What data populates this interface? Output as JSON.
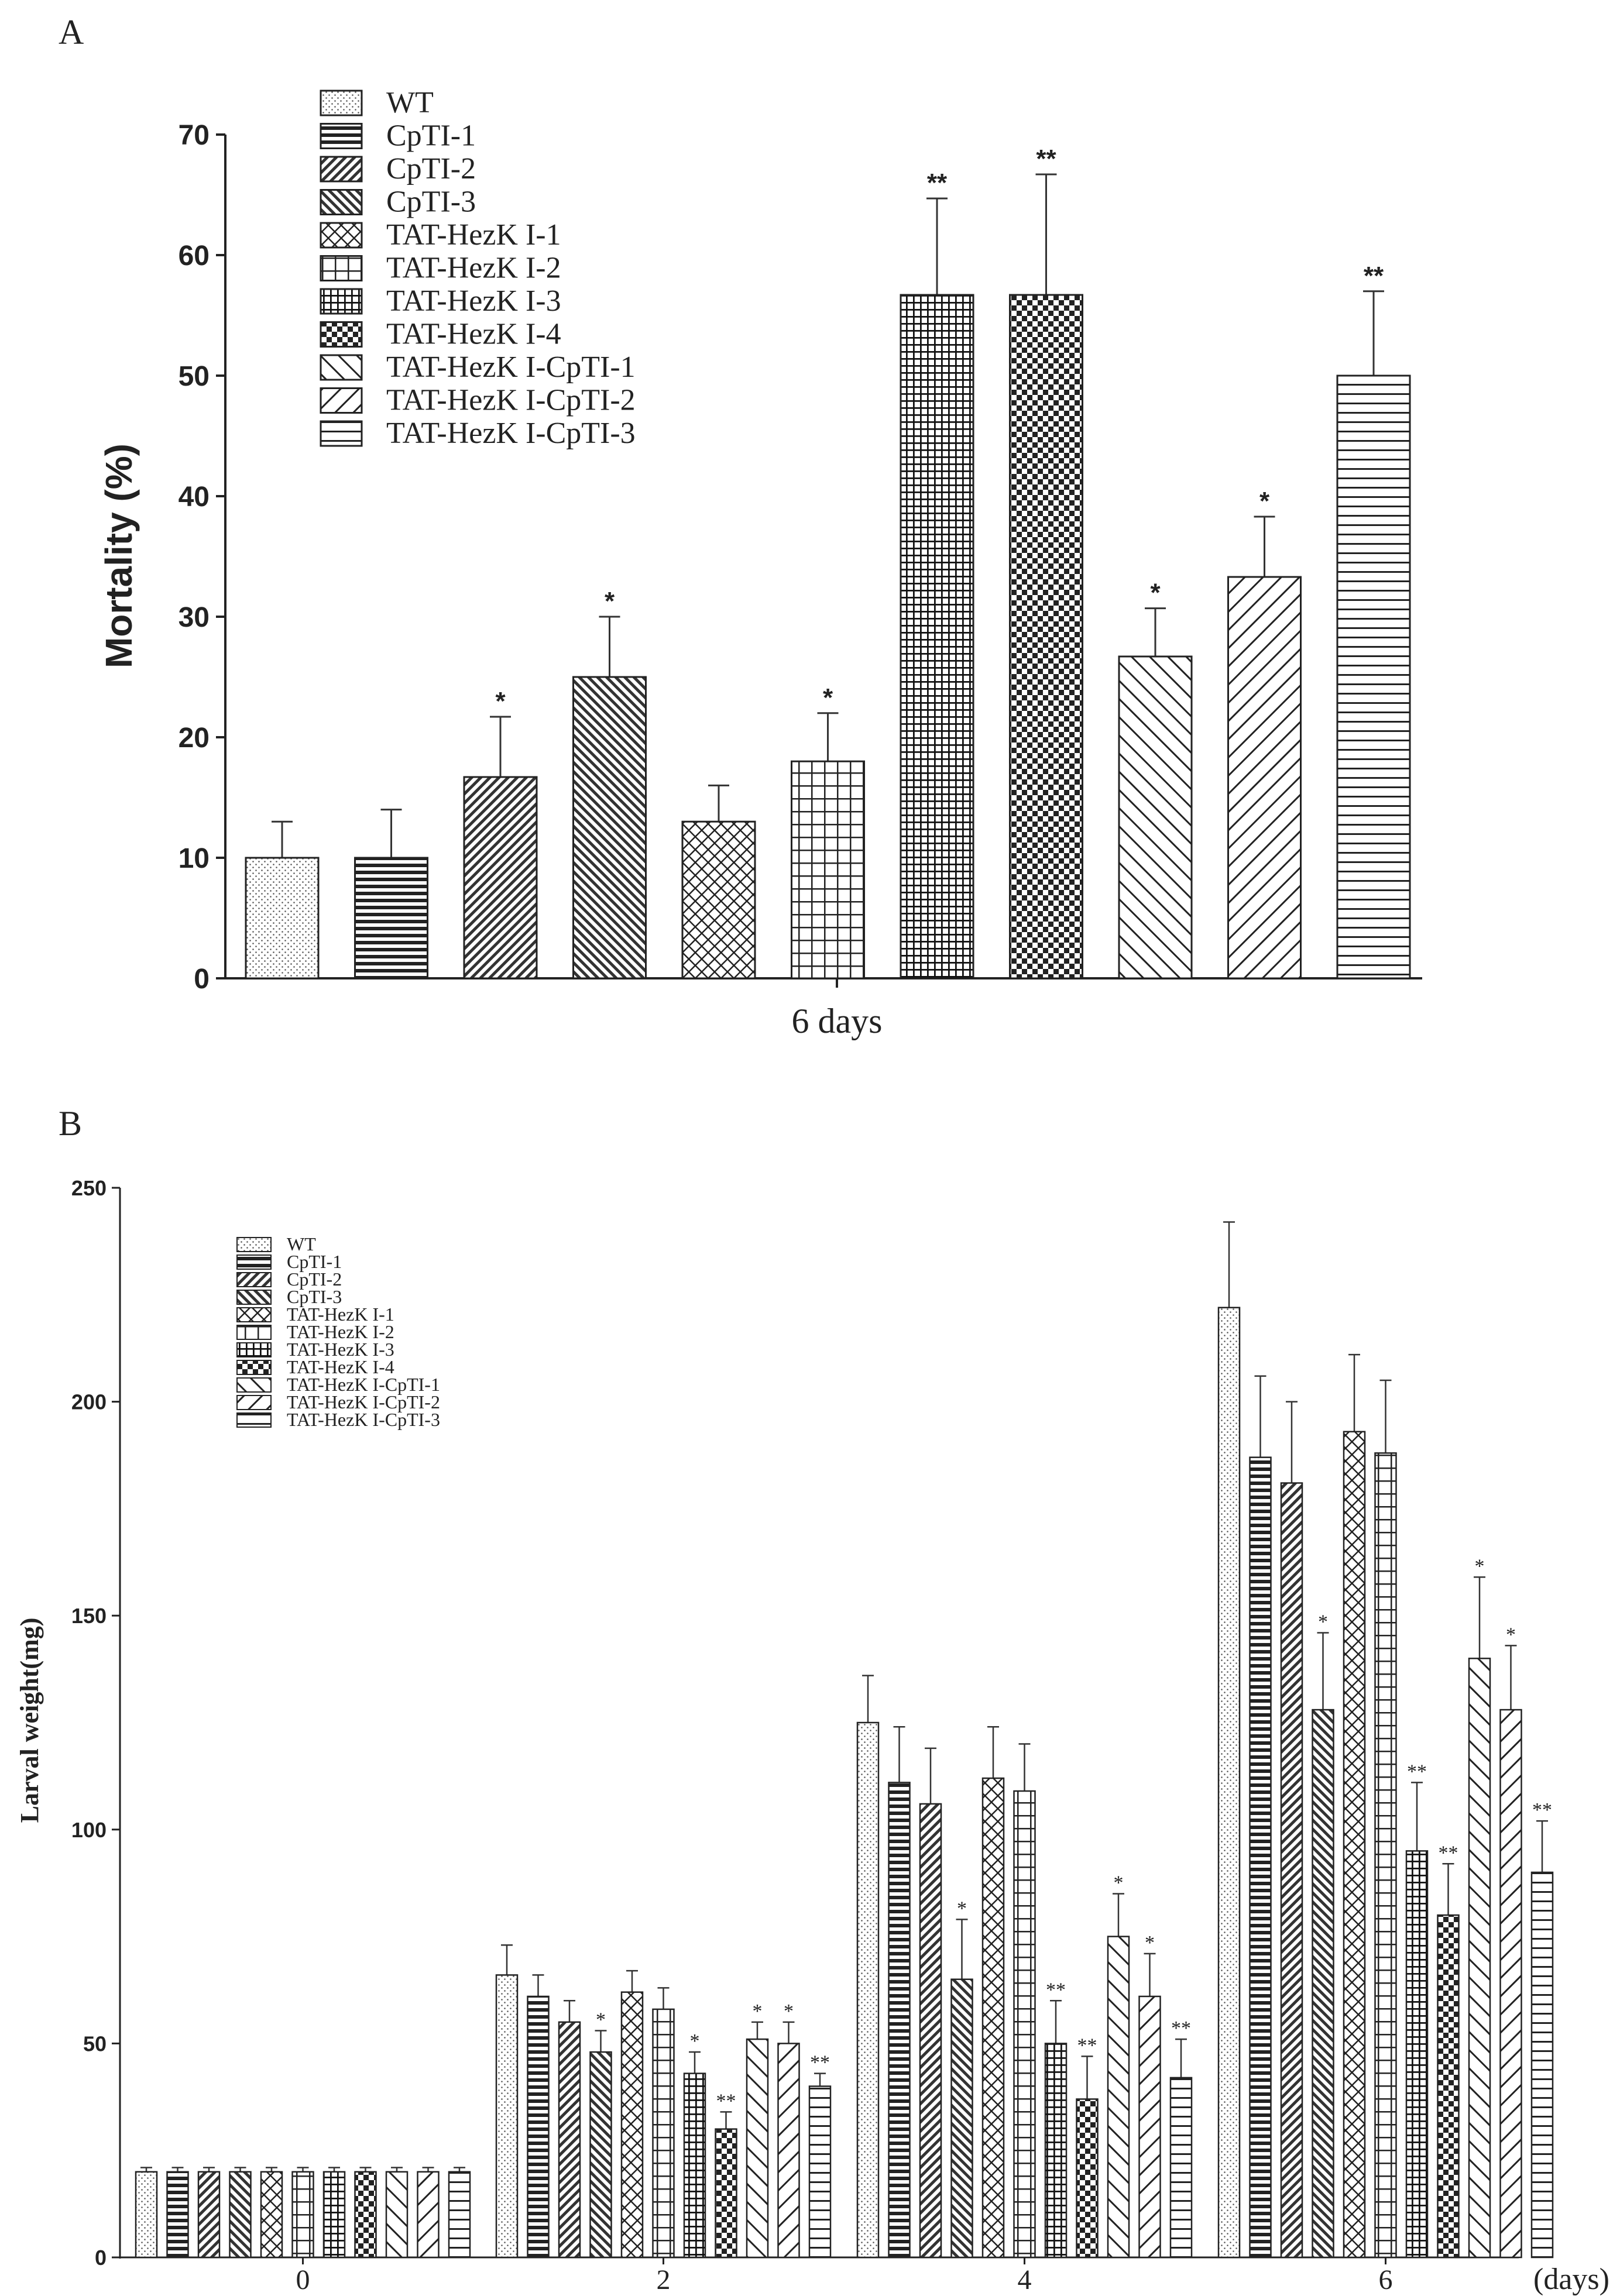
{
  "chart_data": [
    {
      "panel_label": "A",
      "type": "bar",
      "ylabel": "Mortality (%)",
      "xlabel": "6 days",
      "ylim": [
        0,
        70
      ],
      "yticks": [
        "0",
        "10",
        "20",
        "30",
        "40",
        "50",
        "60",
        "70"
      ],
      "series": [
        {
          "name": "WT",
          "value": 10,
          "error": 3,
          "sig": ""
        },
        {
          "name": "CpTI-1",
          "value": 10,
          "error": 4,
          "sig": ""
        },
        {
          "name": "CpTI-2",
          "value": 16.7,
          "error": 5,
          "sig": "*"
        },
        {
          "name": "CpTI-3",
          "value": 25,
          "error": 5,
          "sig": "*"
        },
        {
          "name": "TAT-HezK I-1",
          "value": 13,
          "error": 3,
          "sig": ""
        },
        {
          "name": "TAT-HezK I-2",
          "value": 18,
          "error": 4,
          "sig": "*"
        },
        {
          "name": "TAT-HezK I-3",
          "value": 56.7,
          "error": 8,
          "sig": "**"
        },
        {
          "name": "TAT-HezK I-4",
          "value": 56.7,
          "error": 10,
          "sig": "**"
        },
        {
          "name": "TAT-HezK I-CpTI-1",
          "value": 26.7,
          "error": 4,
          "sig": "*"
        },
        {
          "name": "TAT-HezK I-CpTI-2",
          "value": 33.3,
          "error": 5,
          "sig": "*"
        },
        {
          "name": "TAT-HezK I-CpTI-3",
          "value": 50,
          "error": 7,
          "sig": "**"
        }
      ]
    },
    {
      "panel_label": "B",
      "type": "bar",
      "ylabel": "Larval weight(mg)",
      "xlabel": "(days)",
      "ylim": [
        0,
        250
      ],
      "yticks": [
        "0",
        "50",
        "100",
        "150",
        "200",
        "250"
      ],
      "categories": [
        "0",
        "2",
        "4",
        "6"
      ],
      "series": [
        {
          "name": "WT",
          "values": [
            20,
            66,
            125,
            222
          ],
          "errors": [
            1,
            7,
            11,
            20
          ],
          "sig": [
            "",
            "",
            "",
            ""
          ]
        },
        {
          "name": "CpTI-1",
          "values": [
            20,
            61,
            111,
            187
          ],
          "errors": [
            1,
            5,
            13,
            19
          ],
          "sig": [
            "",
            "",
            "",
            ""
          ]
        },
        {
          "name": "CpTI-2",
          "values": [
            20,
            55,
            106,
            181
          ],
          "errors": [
            1,
            5,
            13,
            19
          ],
          "sig": [
            "",
            "",
            "",
            ""
          ]
        },
        {
          "name": "CpTI-3",
          "values": [
            20,
            48,
            65,
            128
          ],
          "errors": [
            1,
            5,
            14,
            18
          ],
          "sig": [
            "",
            "*",
            "*",
            "*"
          ]
        },
        {
          "name": "TAT-HezK I-1",
          "values": [
            20,
            62,
            112,
            193
          ],
          "errors": [
            1,
            5,
            12,
            18
          ],
          "sig": [
            "",
            "",
            "",
            ""
          ]
        },
        {
          "name": "TAT-HezK I-2",
          "values": [
            20,
            58,
            109,
            188
          ],
          "errors": [
            1,
            5,
            11,
            17
          ],
          "sig": [
            "",
            "",
            "",
            ""
          ]
        },
        {
          "name": "TAT-HezK I-3",
          "values": [
            20,
            43,
            50,
            95
          ],
          "errors": [
            1,
            5,
            10,
            16
          ],
          "sig": [
            "",
            "*",
            "**",
            "**"
          ]
        },
        {
          "name": "TAT-HezK I-4",
          "values": [
            20,
            30,
            37,
            80
          ],
          "errors": [
            1,
            4,
            10,
            12
          ],
          "sig": [
            "",
            "**",
            "**",
            "**"
          ]
        },
        {
          "name": "TAT-HezK I-CpTI-1",
          "values": [
            20,
            51,
            75,
            140
          ],
          "errors": [
            1,
            4,
            10,
            19
          ],
          "sig": [
            "",
            "*",
            "*",
            "*"
          ]
        },
        {
          "name": "TAT-HezK I-CpTI-2",
          "values": [
            20,
            50,
            61,
            128
          ],
          "errors": [
            1,
            5,
            10,
            15
          ],
          "sig": [
            "",
            "*",
            "*",
            "*"
          ]
        },
        {
          "name": "TAT-HezK I-CpTI-3",
          "values": [
            20,
            40,
            42,
            90
          ],
          "errors": [
            1,
            3,
            9,
            12
          ],
          "sig": [
            "",
            "**",
            "**",
            "**"
          ]
        }
      ]
    }
  ]
}
